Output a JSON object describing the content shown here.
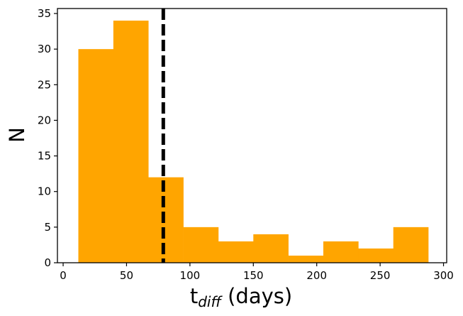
{
  "chart_data": {
    "type": "bar",
    "subtype": "histogram",
    "bins": [
      {
        "x0": 12,
        "x1": 39.6,
        "count": 30
      },
      {
        "x0": 39.6,
        "x1": 67.2,
        "count": 34
      },
      {
        "x0": 67.2,
        "x1": 94.8,
        "count": 12
      },
      {
        "x0": 94.8,
        "x1": 122.4,
        "count": 5
      },
      {
        "x0": 122.4,
        "x1": 150,
        "count": 3
      },
      {
        "x0": 150,
        "x1": 177.6,
        "count": 4
      },
      {
        "x0": 177.6,
        "x1": 205.2,
        "count": 1
      },
      {
        "x0": 205.2,
        "x1": 232.8,
        "count": 3
      },
      {
        "x0": 232.8,
        "x1": 260.4,
        "count": 2
      },
      {
        "x0": 260.4,
        "x1": 288,
        "count": 5
      }
    ],
    "xlim": [
      -4.5,
      302.5
    ],
    "ylim": [
      0,
      35.7
    ],
    "xticks": [
      0,
      50,
      100,
      150,
      200,
      250,
      300
    ],
    "yticks": [
      0,
      5,
      10,
      15,
      20,
      25,
      30,
      35
    ],
    "xlabel_main": "t",
    "xlabel_sub": "diff",
    "xlabel_rest": " (days)",
    "ylabel": "N",
    "vline": {
      "x": 79,
      "style": "dashed",
      "color": "#000000"
    },
    "bar_color": "#FFA500",
    "grid": false,
    "legend": false
  }
}
